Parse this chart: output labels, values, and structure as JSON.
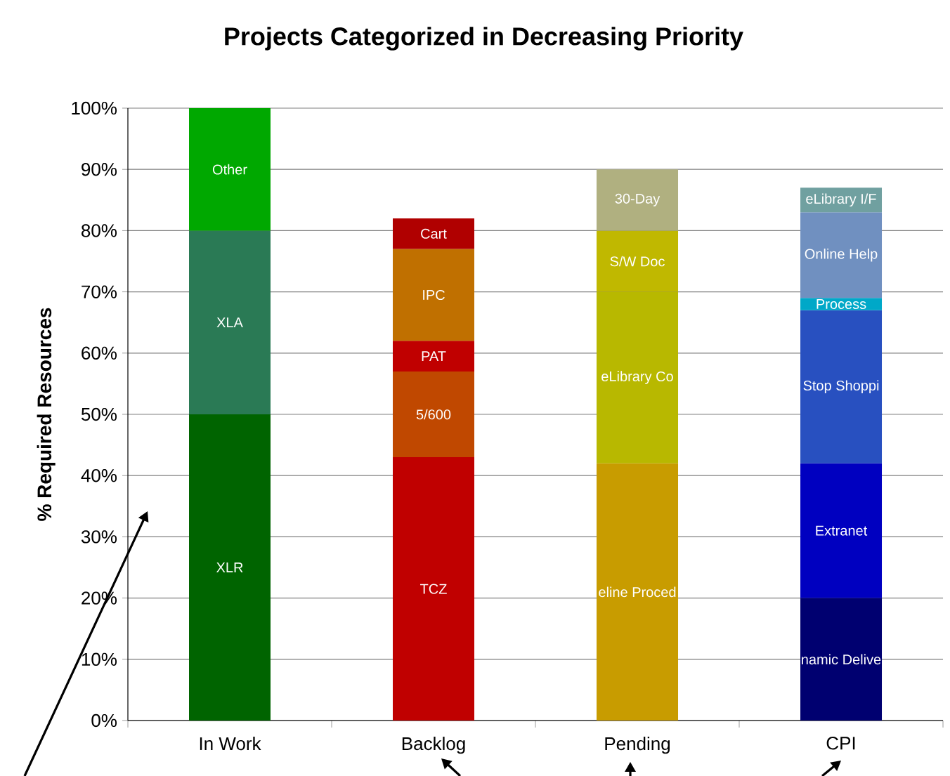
{
  "chart_data": {
    "type": "bar",
    "stacked": true,
    "title": "Projects Categorized in Decreasing Priority",
    "ylabel": "% Required Resources",
    "categories": [
      "In Work",
      "Backlog",
      "Pending",
      "CPI"
    ],
    "series": [
      {
        "name": "XLR",
        "color": "#006400",
        "values": [
          50,
          null,
          null,
          null
        ]
      },
      {
        "name": "XLA",
        "color": "#2a7a55",
        "values": [
          30,
          null,
          null,
          null
        ]
      },
      {
        "name": "Other",
        "color": "#00a800",
        "values": [
          20,
          null,
          null,
          null
        ]
      },
      {
        "name": "TCZ",
        "color": "#c00000",
        "values": [
          null,
          43,
          null,
          null
        ]
      },
      {
        "name": "5/600",
        "color": "#c04800",
        "values": [
          null,
          14,
          null,
          null
        ]
      },
      {
        "name": "PAT",
        "color": "#c00000",
        "values": [
          null,
          5,
          null,
          null
        ]
      },
      {
        "name": "IPC",
        "color": "#c07000",
        "values": [
          null,
          15,
          null,
          null
        ]
      },
      {
        "name": "Cart",
        "color": "#b00000",
        "values": [
          null,
          5,
          null,
          null
        ]
      },
      {
        "name": "eline Proced",
        "color": "#c89c00",
        "values": [
          null,
          null,
          42,
          null
        ]
      },
      {
        "name": "eLibrary Co",
        "color": "#b8b800",
        "values": [
          null,
          null,
          28,
          null
        ]
      },
      {
        "name": "S/W Doc",
        "color": "#c0b800",
        "values": [
          null,
          null,
          10,
          null
        ]
      },
      {
        "name": "30-Day",
        "color": "#b0b080",
        "values": [
          null,
          null,
          10,
          null
        ]
      },
      {
        "name": "namic Delive",
        "color": "#000070",
        "values": [
          null,
          null,
          null,
          20
        ]
      },
      {
        "name": "Extranet",
        "color": "#0000c0",
        "values": [
          null,
          null,
          null,
          22
        ]
      },
      {
        "name": "Stop Shoppi",
        "color": "#2850c0",
        "values": [
          null,
          null,
          null,
          25
        ]
      },
      {
        "name": "Process",
        "color": "#00a8c8",
        "values": [
          null,
          null,
          null,
          2
        ]
      },
      {
        "name": "Online Help",
        "color": "#7090c0",
        "values": [
          null,
          null,
          null,
          14
        ]
      },
      {
        "name": "eLibrary I/F",
        "color": "#70a0a0",
        "values": [
          null,
          null,
          null,
          4
        ]
      }
    ],
    "ylim": [
      0,
      100
    ],
    "yticks": [
      {
        "value": 0,
        "label": "0%"
      },
      {
        "value": 10,
        "label": "10%"
      },
      {
        "value": 20,
        "label": "20%"
      },
      {
        "value": 30,
        "label": "30%"
      },
      {
        "value": 40,
        "label": "40%"
      },
      {
        "value": 50,
        "label": "50%"
      },
      {
        "value": 60,
        "label": "60%"
      },
      {
        "value": 70,
        "label": "70%"
      },
      {
        "value": 80,
        "label": "80%"
      },
      {
        "value": 90,
        "label": "90%"
      },
      {
        "value": 100,
        "label": "100%"
      }
    ],
    "grid": "y"
  }
}
